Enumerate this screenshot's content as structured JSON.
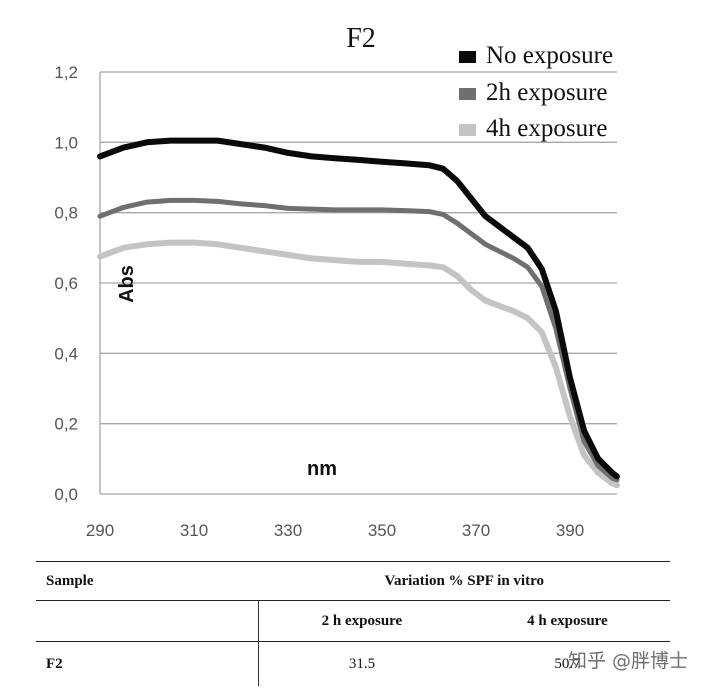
{
  "chart_data": {
    "type": "line",
    "title": "F2",
    "xlabel": "nm",
    "ylabel": "Abs",
    "xlim": [
      290,
      400
    ],
    "ylim": [
      0.0,
      1.2
    ],
    "x_ticks": [
      "290",
      "310",
      "330",
      "350",
      "370",
      "390"
    ],
    "y_ticks": [
      "0,0",
      "0,2",
      "0,4",
      "0,6",
      "0,8",
      "1,0",
      "1,2"
    ],
    "grid": "horizontal",
    "legend_position": "top-right",
    "x": [
      290,
      295,
      300,
      305,
      310,
      315,
      320,
      325,
      330,
      335,
      340,
      345,
      350,
      355,
      360,
      363,
      366,
      369,
      372,
      375,
      378,
      381,
      384,
      387,
      390,
      393,
      396,
      399,
      400
    ],
    "series": [
      {
        "name": "No exposure",
        "color": "#0a0a0a",
        "values": [
          0.96,
          0.985,
          1.0,
          1.005,
          1.005,
          1.005,
          0.995,
          0.985,
          0.97,
          0.96,
          0.955,
          0.95,
          0.945,
          0.94,
          0.935,
          0.925,
          0.89,
          0.84,
          0.79,
          0.76,
          0.73,
          0.7,
          0.64,
          0.52,
          0.33,
          0.18,
          0.1,
          0.06,
          0.05
        ]
      },
      {
        "name": "2h exposure",
        "color": "#6f6f6f",
        "values": [
          0.79,
          0.815,
          0.83,
          0.835,
          0.835,
          0.832,
          0.825,
          0.82,
          0.812,
          0.81,
          0.808,
          0.808,
          0.808,
          0.806,
          0.803,
          0.795,
          0.77,
          0.74,
          0.71,
          0.69,
          0.67,
          0.645,
          0.59,
          0.47,
          0.3,
          0.15,
          0.08,
          0.045,
          0.04
        ]
      },
      {
        "name": "4h exposure",
        "color": "#c4c4c4",
        "values": [
          0.675,
          0.7,
          0.71,
          0.715,
          0.715,
          0.71,
          0.7,
          0.69,
          0.68,
          0.67,
          0.665,
          0.66,
          0.66,
          0.655,
          0.65,
          0.645,
          0.62,
          0.58,
          0.55,
          0.535,
          0.52,
          0.5,
          0.46,
          0.36,
          0.22,
          0.11,
          0.06,
          0.03,
          0.025
        ]
      }
    ]
  },
  "table": {
    "header_sample": "Sample",
    "header_variation": "Variation % SPF in vitro",
    "col_2h": "2 h exposure",
    "col_4h": "4 h exposure",
    "rows": [
      {
        "sample": "F2",
        "v2h": "31.5",
        "v4h": "50.7"
      }
    ]
  },
  "watermark": "知乎 @胖博士"
}
